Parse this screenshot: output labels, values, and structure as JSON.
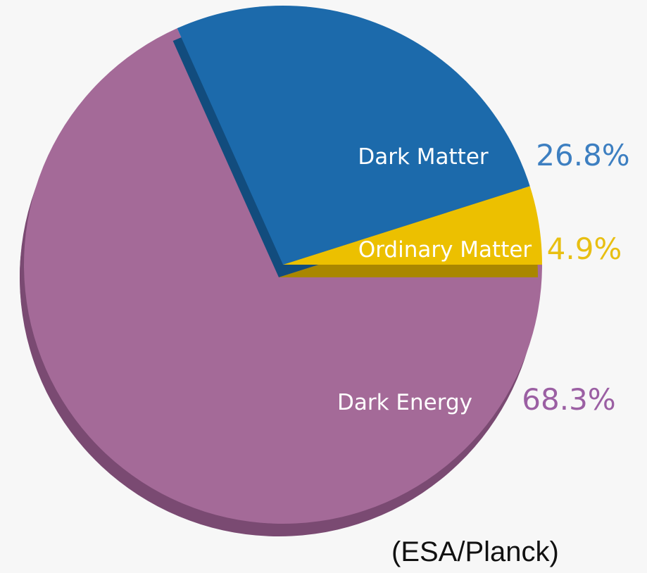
{
  "chart_data": {
    "type": "pie",
    "slices": [
      {
        "label": "Dark Energy",
        "value": 68.3,
        "value_label": "68.3%",
        "color": "#a46a98",
        "shadow": "#7a4a72"
      },
      {
        "label": "Dark Matter",
        "value": 26.8,
        "value_label": "26.8%",
        "color": "#1c6aab",
        "shadow": "#124c7d"
      },
      {
        "label": "Ordinary Matter",
        "value": 4.9,
        "value_label": "4.9%",
        "color": "#ecc000",
        "shadow": "#a98700"
      }
    ],
    "value_label_colors": {
      "Dark Energy": "#9b5fa3",
      "Dark Matter": "#3d7fc1",
      "Ordinary Matter": "#e8bf12"
    }
  },
  "credit": "(ESA/Planck)"
}
